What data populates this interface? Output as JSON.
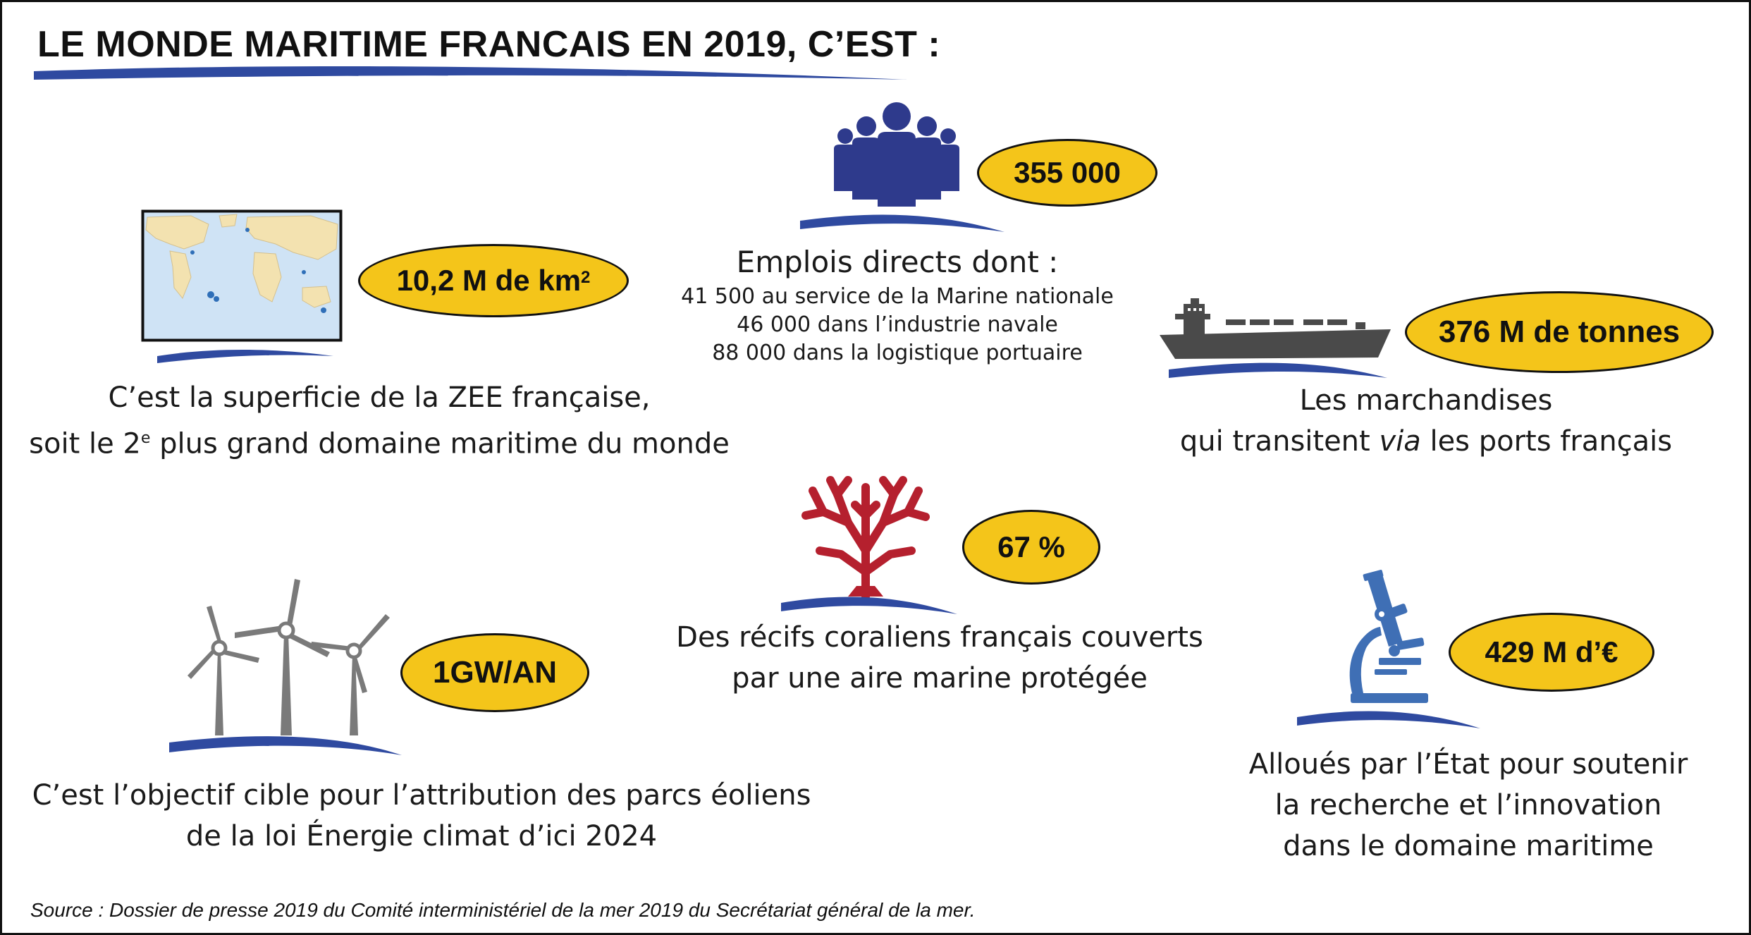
{
  "title": "LE MONDE MARITIME FRANCAIS EN 2019, C’EST :",
  "colors": {
    "badge": "#f4c51a",
    "wave": "#2f4aa0",
    "people": "#2e3a8c",
    "ship": "#4a4a4a",
    "coral": "#b5202e",
    "turbine": "#7a7a7a",
    "microscope": "#3f6fb5",
    "map_sea": "#cfe3f5",
    "map_land": "#f3e2b0"
  },
  "items": {
    "zee": {
      "icon": "world-map-icon",
      "value_main": "10,2 M de km",
      "value_sup": "2",
      "line1": "C’est la superficie de la ZEE française,",
      "line2_pre": "soit le 2",
      "line2_sup": "e",
      "line2_post": " plus grand domaine maritime du monde"
    },
    "jobs": {
      "icon": "people-group-icon",
      "value": "355 000",
      "heading": "Emplois directs dont :",
      "detail1": "41 500 au service de la Marine nationale",
      "detail2": "46 000 dans l’industrie navale",
      "detail3": "88 000 dans la logistique portuaire"
    },
    "goods": {
      "icon": "cargo-ship-icon",
      "value": "376 M de tonnes",
      "line1": "Les marchandises",
      "line2_pre": "qui transitent ",
      "line2_em": "via",
      "line2_post": " les ports français"
    },
    "coral": {
      "icon": "coral-icon",
      "value": "67 %",
      "line1": "Des récifs coraliens français couverts",
      "line2": "par une aire marine protégée"
    },
    "wind": {
      "icon": "wind-turbine-icon",
      "value": "1GW/AN",
      "line1": "C’est l’objectif cible pour l’attribution des parcs éoliens",
      "line2": "de la loi Énergie climat d’ici 2024"
    },
    "research": {
      "icon": "microscope-icon",
      "value": "429 M d’€",
      "line1": "Alloués par l’État pour soutenir",
      "line2": "la recherche et l’innovation",
      "line3": "dans le domaine maritime"
    }
  },
  "source": "Source : Dossier de presse 2019 du Comité interministériel de la mer 2019 du Secrétariat général de la mer."
}
